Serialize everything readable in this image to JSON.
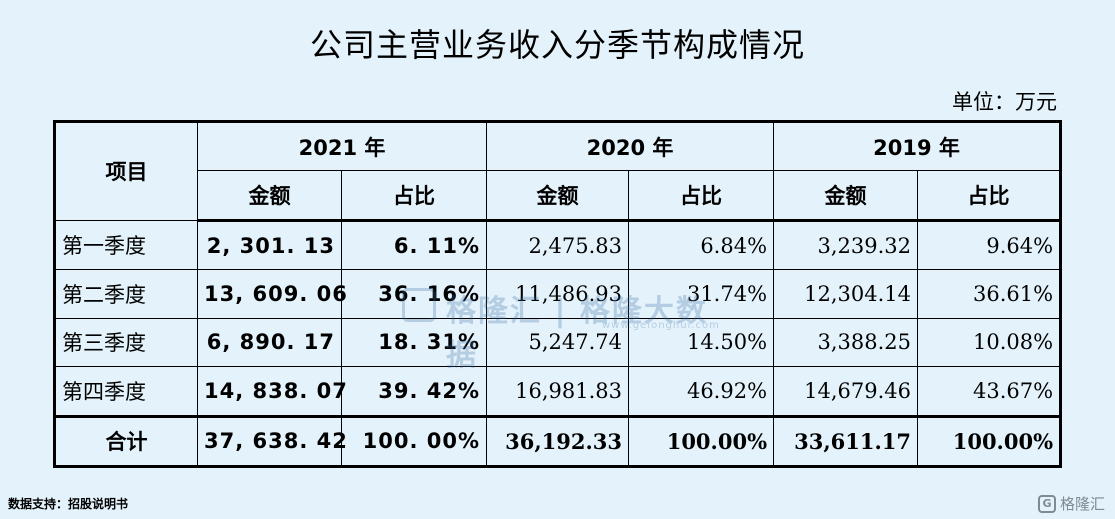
{
  "title": "公司主营业务收入分季节构成情况",
  "unit": "单位：万元",
  "table": {
    "item_header": "项目",
    "years": [
      "2021 年",
      "2020 年",
      "2019 年"
    ],
    "sub_headers": [
      "金额",
      "占比",
      "金额",
      "占比",
      "金额",
      "占比"
    ],
    "rows": [
      {
        "label": "第一季度",
        "cells": [
          "2, 301. 13",
          "6. 11%",
          "2,475.83",
          "6.84%",
          "3,239.32",
          "9.64%"
        ]
      },
      {
        "label": "第二季度",
        "cells": [
          "13, 609. 06",
          "36. 16%",
          "11,486.93",
          "31.74%",
          "12,304.14",
          "36.61%"
        ]
      },
      {
        "label": "第三季度",
        "cells": [
          "6, 890. 17",
          "18. 31%",
          "5,247.74",
          "14.50%",
          "3,388.25",
          "10.08%"
        ]
      },
      {
        "label": "第四季度",
        "cells": [
          "14, 838. 07",
          "39. 42%",
          "16,981.83",
          "46.92%",
          "14,679.46",
          "43.67%"
        ]
      }
    ],
    "total": {
      "label": "合计",
      "cells": [
        "37, 638. 42",
        "100. 00%",
        "36,192.33",
        "100.00%",
        "33,611.17",
        "100.00%"
      ]
    }
  },
  "source": "数据支持：招股说明书",
  "watermark": {
    "text": "格隆汇 | 格隆大数据",
    "url": "www.gelonghui.com"
  },
  "brand": {
    "logo": "G",
    "text": "格隆汇"
  }
}
